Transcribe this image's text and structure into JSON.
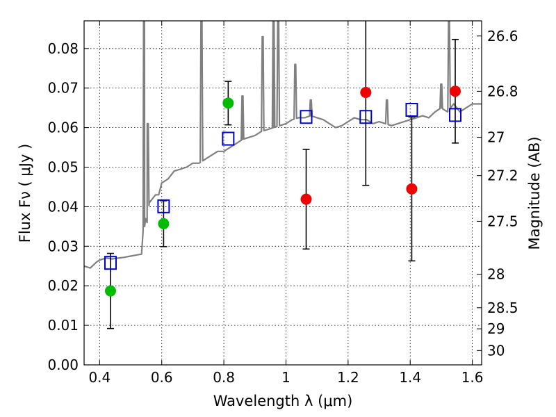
{
  "chart_data": {
    "type": "scatter",
    "xlabel": "Wavelength  λ (μm)",
    "ylabel": "Flux  Fν  ( μJy )",
    "y2label": "Magnitude (AB)",
    "xlim": [
      0.35,
      1.63
    ],
    "ylim": [
      0.0,
      0.087
    ],
    "grid": true,
    "x_ticks": [
      0.4,
      0.6,
      0.8,
      1.0,
      1.2,
      1.4,
      1.6
    ],
    "x_tick_labels": [
      "0.4",
      "0.6",
      "0.8",
      "1",
      "1.2",
      "1.4",
      "1.6"
    ],
    "y_ticks": [
      0.0,
      0.01,
      0.02,
      0.03,
      0.04,
      0.05,
      0.06,
      0.07,
      0.08
    ],
    "y_tick_labels": [
      "0.00",
      "0.01",
      "0.02",
      "0.03",
      "0.04",
      "0.05",
      "0.06",
      "0.07",
      "0.08"
    ],
    "y2_ticks": [
      26.6,
      26.8,
      27.0,
      27.2,
      27.5,
      28.0,
      28.5,
      29.0,
      30.0
    ],
    "y2_tick_labels": [
      "26.6",
      "26.8",
      "27",
      "27.2",
      "27.5",
      "28",
      "28.5",
      "29",
      "30"
    ],
    "colors": {
      "model": "#808080",
      "green": "#00bb00",
      "red": "#ee0000",
      "blue": "#0000cc",
      "errorbar": "#000000"
    },
    "model_spectrum": {
      "name": "",
      "color": "#808080",
      "x": [
        0.35,
        0.37,
        0.39,
        0.4,
        0.42,
        0.44,
        0.46,
        0.48,
        0.5,
        0.52,
        0.535,
        0.54,
        0.545,
        0.548,
        0.553,
        0.56,
        0.57,
        0.58,
        0.59,
        0.6,
        0.62,
        0.63,
        0.64,
        0.66,
        0.68,
        0.7,
        0.72,
        0.74,
        0.76,
        0.78,
        0.8,
        0.82,
        0.84,
        0.86,
        0.88,
        0.9,
        0.92,
        0.94,
        0.96,
        0.98,
        1.0,
        1.02,
        1.04,
        1.06,
        1.08,
        1.1,
        1.12,
        1.14,
        1.16,
        1.18,
        1.2,
        1.22,
        1.24,
        1.26,
        1.28,
        1.3,
        1.32,
        1.34,
        1.36,
        1.38,
        1.4,
        1.42,
        1.44,
        1.46,
        1.48,
        1.5,
        1.52,
        1.54,
        1.56,
        1.58,
        1.6,
        1.63
      ],
      "y": [
        0.025,
        0.0245,
        0.026,
        0.0265,
        0.027,
        0.0268,
        0.027,
        0.0272,
        0.0275,
        0.0278,
        0.028,
        0.034,
        0.035,
        0.037,
        0.036,
        0.041,
        0.042,
        0.043,
        0.043,
        0.046,
        0.047,
        0.048,
        0.049,
        0.0495,
        0.05,
        0.051,
        0.051,
        0.052,
        0.053,
        0.054,
        0.054,
        0.055,
        0.056,
        0.057,
        0.0575,
        0.058,
        0.059,
        0.0595,
        0.06,
        0.0605,
        0.061,
        0.062,
        0.0625,
        0.0625,
        0.063,
        0.0625,
        0.062,
        0.061,
        0.06,
        0.0605,
        0.0615,
        0.0625,
        0.062,
        0.062,
        0.061,
        0.0615,
        0.061,
        0.0605,
        0.061,
        0.0615,
        0.062,
        0.0625,
        0.063,
        0.0625,
        0.064,
        0.065,
        0.064,
        0.066,
        0.064,
        0.065,
        0.066,
        0.066
      ],
      "emission_lines": [
        {
          "x": 0.543,
          "peak": 0.087
        },
        {
          "x": 0.555,
          "peak": 0.061
        },
        {
          "x": 0.728,
          "peak": 0.087
        },
        {
          "x": 0.86,
          "peak": 0.068
        },
        {
          "x": 0.925,
          "peak": 0.083
        },
        {
          "x": 0.96,
          "peak": 0.087
        },
        {
          "x": 0.975,
          "peak": 0.087
        },
        {
          "x": 1.03,
          "peak": 0.076
        },
        {
          "x": 1.08,
          "peak": 0.067
        },
        {
          "x": 1.325,
          "peak": 0.067
        },
        {
          "x": 1.5,
          "peak": 0.071
        },
        {
          "x": 1.525,
          "peak": 0.087
        }
      ]
    },
    "series": [
      {
        "name": "",
        "marker": "circle",
        "color": "#00bb00",
        "points": [
          {
            "x": 0.435,
            "y": 0.0187,
            "err": 0.0095
          },
          {
            "x": 0.606,
            "y": 0.0357,
            "err": 0.0058
          },
          {
            "x": 0.814,
            "y": 0.0662,
            "err": 0.0055
          }
        ]
      },
      {
        "name": "",
        "marker": "circle",
        "color": "#ee0000",
        "points": [
          {
            "x": 1.065,
            "y": 0.0419,
            "err": 0.0126
          },
          {
            "x": 1.257,
            "y": 0.0689,
            "err": 0.0235
          },
          {
            "x": 1.405,
            "y": 0.0445,
            "err": 0.0182
          },
          {
            "x": 1.545,
            "y": 0.0692,
            "err": 0.0131
          }
        ]
      },
      {
        "name": "",
        "marker": "square",
        "color": "#0000cc",
        "points": [
          {
            "x": 0.435,
            "y": 0.0258
          },
          {
            "x": 0.606,
            "y": 0.0401
          },
          {
            "x": 0.814,
            "y": 0.0572
          },
          {
            "x": 1.065,
            "y": 0.0627
          },
          {
            "x": 1.257,
            "y": 0.0627
          },
          {
            "x": 1.405,
            "y": 0.0645
          },
          {
            "x": 1.545,
            "y": 0.0632
          }
        ]
      }
    ]
  }
}
